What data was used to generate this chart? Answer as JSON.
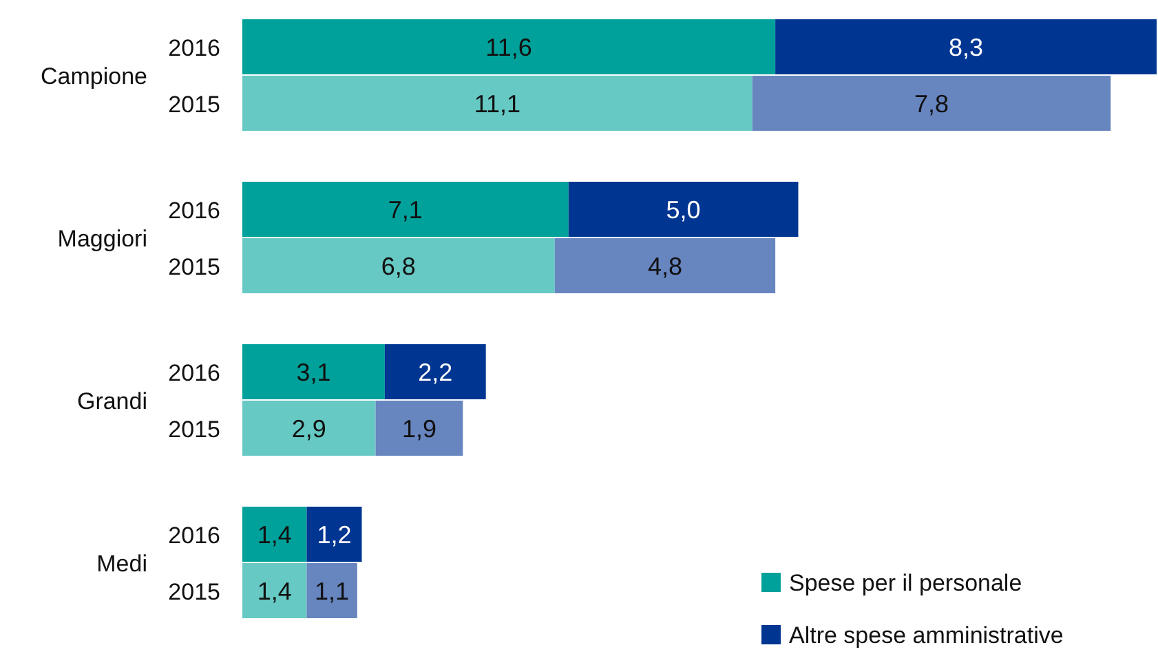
{
  "chart_data": {
    "type": "bar",
    "orientation": "horizontal",
    "stacked": true,
    "legend": "bottom right",
    "categories": [
      "2016",
      "2015",
      "2016",
      "2015",
      "2016",
      "2015",
      "2016",
      "2015"
    ],
    "annotations": [
      "Campione",
      "Maggiori",
      "Grandi",
      "Medi"
    ],
    "series": [
      {
        "name": "Spese per il personale",
        "color": "#00a19a",
        "colors": [
          "#00a19a",
          "#66c9c4",
          "#00a19a",
          "#66c9c4",
          "#00a19a",
          "#66c9c4",
          "#00a19a",
          "#66c9c4"
        ],
        "values": [
          11.6,
          11.1,
          7.1,
          6.8,
          3.1,
          2.9,
          1.4,
          1.4
        ],
        "value_labels": [
          "11,6",
          "11,1",
          "7,1",
          "6,8",
          "3,1",
          "2,9",
          "1,4",
          "1,4"
        ]
      },
      {
        "name": "Altre spese amministrative",
        "color": "#003591",
        "colors": [
          "#003591",
          "#6785bf",
          "#003591",
          "#6785bf",
          "#003591",
          "#6785bf",
          "#003591",
          "#6785bf"
        ],
        "values": [
          8.3,
          7.8,
          5.0,
          4.8,
          2.2,
          1.9,
          1.2,
          1.1
        ],
        "value_labels": [
          "8,3",
          "7,8",
          "5,0",
          "4,8",
          "2,2",
          "1,9",
          "1,2",
          "1,1"
        ]
      }
    ]
  }
}
